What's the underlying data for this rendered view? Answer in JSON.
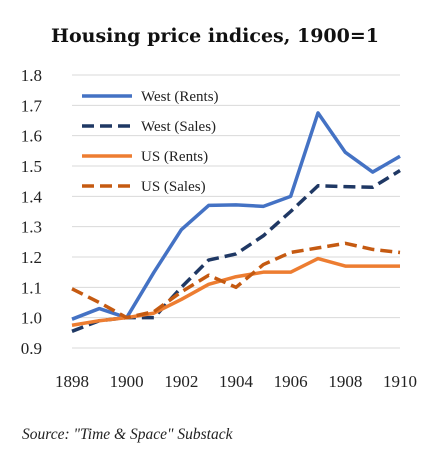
{
  "chart_data": {
    "type": "line",
    "title": "Housing price indices, 1900=1",
    "x": [
      1898,
      1899,
      1900,
      1901,
      1902,
      1903,
      1904,
      1905,
      1906,
      1907,
      1908,
      1909,
      1910
    ],
    "x_ticks": [
      "1898",
      "1900",
      "1902",
      "1904",
      "1906",
      "1908",
      "1910"
    ],
    "y_ticks": [
      "0.9",
      "1.0",
      "1.1",
      "1.2",
      "1.3",
      "1.4",
      "1.5",
      "1.6",
      "1.7",
      "1.8"
    ],
    "ylim": [
      0.9,
      1.8
    ],
    "xlim": [
      1898,
      1910
    ],
    "grid": "horizontal",
    "legend_position": "top-left",
    "series": [
      {
        "name": "West (Rents)",
        "color": "#4472c4",
        "dash": "solid",
        "values": [
          0.995,
          1.03,
          1.0,
          1.15,
          1.29,
          1.37,
          1.372,
          1.367,
          1.4,
          1.675,
          1.545,
          1.48,
          1.532
        ]
      },
      {
        "name": "West (Sales)",
        "color": "#1f3864",
        "dash": "dashed",
        "values": [
          0.955,
          0.99,
          1.0,
          1.0,
          1.1,
          1.19,
          1.21,
          1.27,
          1.35,
          1.435,
          1.432,
          1.43,
          1.485
        ]
      },
      {
        "name": "US (Rents)",
        "color": "#ed7d31",
        "dash": "solid",
        "values": [
          0.975,
          0.99,
          1.0,
          1.015,
          1.06,
          1.11,
          1.135,
          1.15,
          1.15,
          1.195,
          1.17,
          1.17,
          1.17
        ]
      },
      {
        "name": "US (Sales)",
        "color": "#c55a11",
        "dash": "dashed",
        "values": [
          1.095,
          1.05,
          1.0,
          1.02,
          1.085,
          1.14,
          1.1,
          1.175,
          1.215,
          1.23,
          1.245,
          1.225,
          1.215
        ]
      }
    ]
  },
  "source": "Source: \"Time & Space\" Substack"
}
